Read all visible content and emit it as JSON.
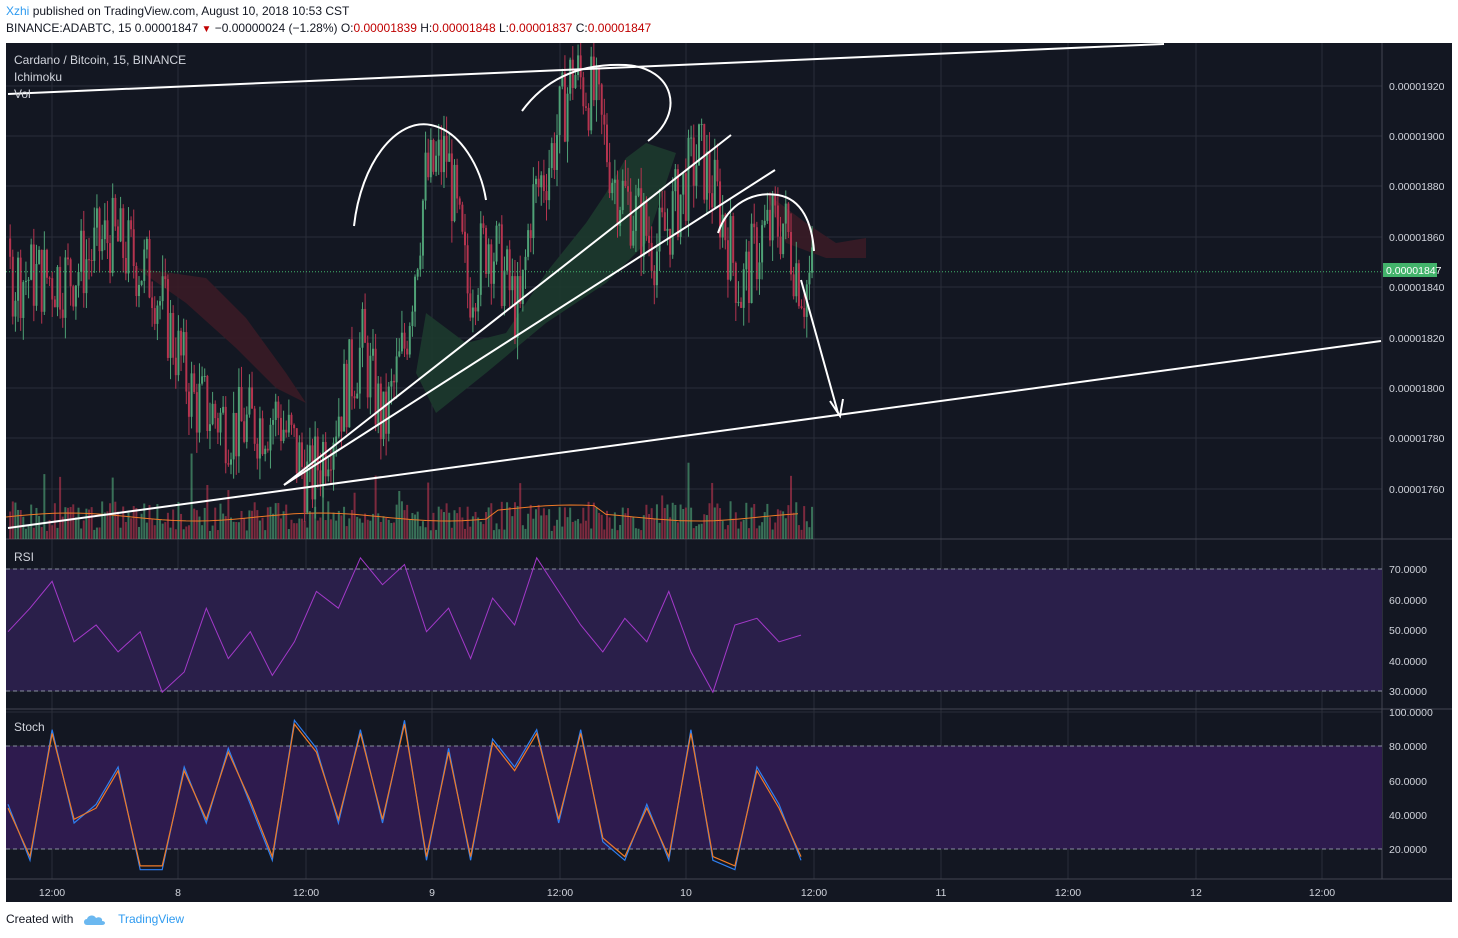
{
  "header": {
    "author": "Xzhi",
    "published": "published on TradingView.com, August 10, 2018 10:53 CST",
    "symbol": "BINANCE:ADABTC, 15",
    "last": "0.00001847",
    "change": "−0.00000024 (−1.28%)",
    "o_label": "O:",
    "o": "0.00001839",
    "h_label": "H:",
    "h": "0.00001848",
    "l_label": "L:",
    "l": "0.00001837",
    "c_label": "C:",
    "c": "0.00001847"
  },
  "legend": {
    "title": "Cardano / Bitcoin, 15, BINANCE",
    "ichimoku": "Ichimoku",
    "vol": "Vol",
    "rsi": "RSI",
    "stoch": "Stoch"
  },
  "footer": {
    "created": "Created with",
    "brand": "TradingView"
  },
  "colors": {
    "background": "#131722",
    "up": "#4fa176",
    "down": "#b5344f",
    "rsi": "#a339c9",
    "rsi_band": "#2a1f4a",
    "stoch_k": "#2f7ff0",
    "stoch_d": "#ef7a27",
    "stoch_band": "#2e1b4e",
    "price_tag": "#43b36b",
    "cloud_green": "#1d3a2e",
    "cloud_red": "#3a1b26"
  },
  "chart_data": [
    {
      "type": "candlestick",
      "title": "Cardano / Bitcoin, 15, BINANCE",
      "ylim": [
        1.75e-05,
        1.93e-05
      ],
      "y_ticks": [
        "0.00001920",
        "0.00001900",
        "0.00001880",
        "0.00001860",
        "0.00001840",
        "0.00001820",
        "0.00001800",
        "0.00001780",
        "0.00001760"
      ],
      "x_ticks": [
        "12:00",
        "8",
        "12:00",
        "9",
        "12:00",
        "10",
        "12:00",
        "11",
        "12:00",
        "12",
        "12:00"
      ],
      "last_price_label": "0.00001847",
      "approx_close_path": [
        {
          "x": "Aug 7 12:00",
          "y": 1.845e-05
        },
        {
          "x": "Aug 7 16:00",
          "y": 1.86e-05
        },
        {
          "x": "Aug 7 20:00",
          "y": 1.845e-05
        },
        {
          "x": "Aug 8 00:00",
          "y": 1.8e-05
        },
        {
          "x": "Aug 8 04:00",
          "y": 1.79e-05
        },
        {
          "x": "Aug 8 08:00",
          "y": 1.795e-05
        },
        {
          "x": "Aug 8 11:00",
          "y": 1.77e-05
        },
        {
          "x": "Aug 8 12:00",
          "y": 1.78e-05
        },
        {
          "x": "Aug 8 16:00",
          "y": 1.82e-05
        },
        {
          "x": "Aug 8 18:00",
          "y": 1.79e-05
        },
        {
          "x": "Aug 8 20:00",
          "y": 1.82e-05
        },
        {
          "x": "Aug 8 22:00",
          "y": 1.88e-05
        },
        {
          "x": "Aug 9 00:00",
          "y": 1.89e-05
        },
        {
          "x": "Aug 9 02:00",
          "y": 1.84e-05
        },
        {
          "x": "Aug 9 04:00",
          "y": 1.86e-05
        },
        {
          "x": "Aug 9 07:00",
          "y": 1.83e-05
        },
        {
          "x": "Aug 9 08:00",
          "y": 1.87e-05
        },
        {
          "x": "Aug 9 10:00",
          "y": 1.89e-05
        },
        {
          "x": "Aug 9 12:00",
          "y": 1.92e-05
        },
        {
          "x": "Aug 9 14:00",
          "y": 1.91e-05
        },
        {
          "x": "Aug 9 16:00",
          "y": 1.88e-05
        },
        {
          "x": "Aug 9 20:00",
          "y": 1.855e-05
        },
        {
          "x": "Aug 10 00:00",
          "y": 1.89e-05
        },
        {
          "x": "Aug 10 02:00",
          "y": 1.87e-05
        },
        {
          "x": "Aug 10 04:00",
          "y": 1.84e-05
        },
        {
          "x": "Aug 10 06:00",
          "y": 1.86e-05
        },
        {
          "x": "Aug 10 08:00",
          "y": 1.865e-05
        },
        {
          "x": "Aug 10 10:00",
          "y": 1.84e-05
        },
        {
          "x": "Aug 10 10:53",
          "y": 1.847e-05
        }
      ],
      "annotations": [
        "rising channel trendlines",
        "rising wedge",
        "curved tops (head-and-shoulders style)",
        "down arrow to lower trendline"
      ]
    },
    {
      "type": "line",
      "title": "RSI",
      "ylim": [
        25,
        75
      ],
      "y_ticks": [
        "70.0000",
        "60.0000",
        "50.0000",
        "40.0000",
        "30.0000"
      ],
      "band": [
        30,
        70
      ],
      "approx_values": [
        48,
        55,
        63,
        45,
        50,
        42,
        48,
        30,
        36,
        55,
        40,
        48,
        35,
        45,
        60,
        55,
        70,
        62,
        68,
        48,
        55,
        40,
        58,
        50,
        70,
        60,
        50,
        42,
        52,
        45,
        60,
        42,
        30,
        50,
        52,
        45,
        47
      ]
    },
    {
      "type": "line",
      "title": "Stoch",
      "ylim": [
        10,
        100
      ],
      "y_ticks": [
        "100.0000",
        "80.0000",
        "60.0000",
        "40.0000",
        "20.0000"
      ],
      "band": [
        20,
        80
      ],
      "series": [
        {
          "approx_values": [
            50,
            20,
            90,
            40,
            50,
            70,
            15,
            15,
            70,
            40,
            80,
            50,
            20,
            95,
            80,
            40,
            90,
            40,
            95,
            20,
            80,
            20,
            85,
            70,
            90,
            40,
            90,
            30,
            20,
            50,
            20,
            90,
            20,
            15,
            70,
            50,
            20
          ]
        },
        {
          "approx_values": [
            48,
            22,
            88,
            42,
            48,
            68,
            17,
            17,
            68,
            42,
            78,
            52,
            22,
            93,
            78,
            42,
            88,
            42,
            93,
            22,
            78,
            22,
            83,
            68,
            88,
            42,
            88,
            32,
            22,
            48,
            22,
            88,
            22,
            17,
            68,
            48,
            22
          ]
        }
      ]
    }
  ]
}
